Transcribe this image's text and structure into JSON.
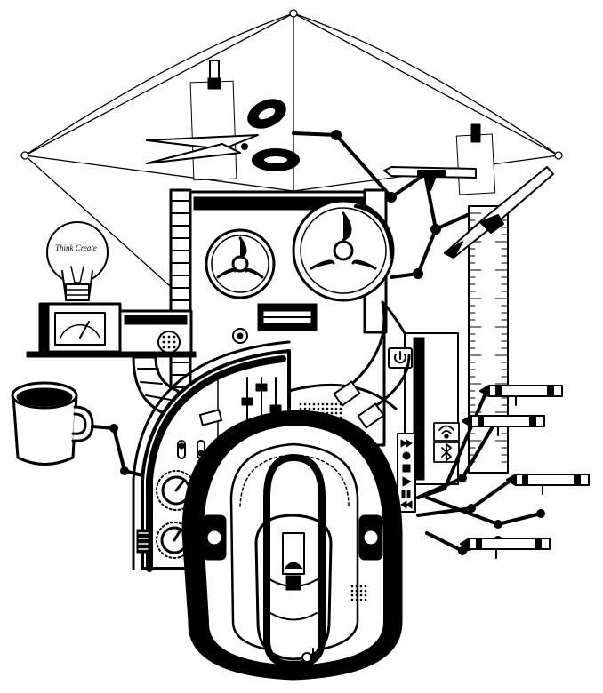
{
  "bulb_label": "Think Create",
  "colors": {
    "ink": "#000000",
    "paper": "#ffffff",
    "grey": "#d8d8d8"
  },
  "icons": [
    "light-bulb-icon",
    "coffee-mug-icon",
    "scissors-icon",
    "paper-clip-icon",
    "tape-reel-icon",
    "power-icon",
    "usb-icon",
    "bluetooth-icon",
    "wifi-icon",
    "crayon-icon",
    "pencil-icon",
    "ruler-icon",
    "craft-knife-icon",
    "fader-slider-icon",
    "knob-icon",
    "speaker-grille-icon",
    "media-controls-icon"
  ]
}
